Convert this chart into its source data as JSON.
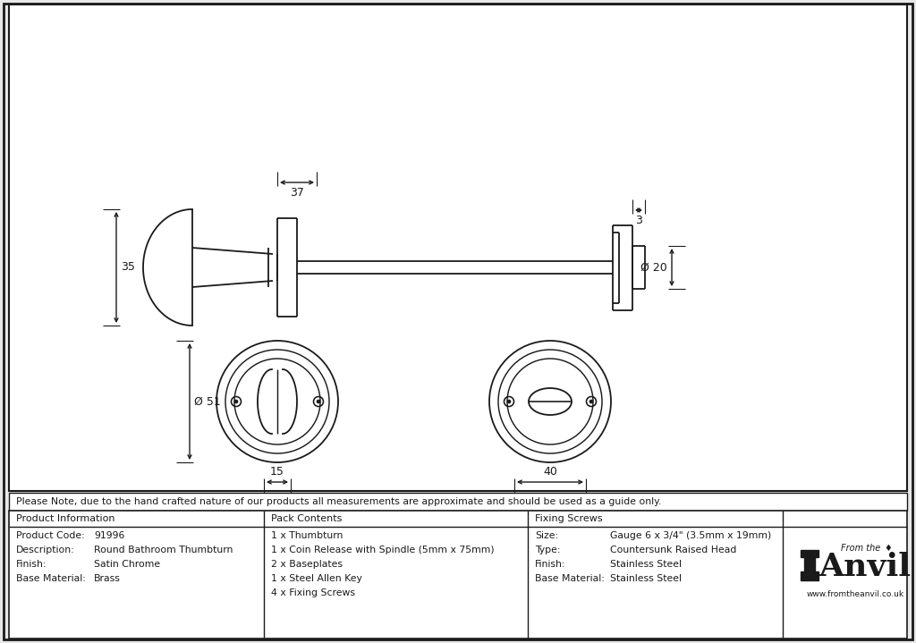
{
  "bg_color": "#e8e8e8",
  "drawing_bg": "#e8e8e8",
  "line_color": "#1a1a1a",
  "note": "Please Note, due to the hand crafted nature of our products all measurements are approximate and should be used as a guide only.",
  "product_info_labels": [
    "Product Code:",
    "Description:",
    "Finish:",
    "Base Material:"
  ],
  "product_info_values": [
    "91996",
    "Round Bathroom Thumbturn",
    "Satin Chrome",
    "Brass"
  ],
  "pack_contents": [
    "1 x Thumbturn",
    "1 x Coin Release with Spindle (5mm x 75mm)",
    "2 x Baseplates",
    "1 x Steel Allen Key",
    "4 x Fixing Screws"
  ],
  "fixing_labels": [
    "Size:",
    "Type:",
    "Finish:",
    "Base Material:"
  ],
  "fixing_values": [
    "Gauge 6 x 3/4\" (3.5mm x 19mm)",
    "Countersunk Raised Head",
    "Stainless Steel",
    "Stainless Steel"
  ],
  "dim_37": "37",
  "dim_3": "3",
  "dim_35": "35",
  "dim_20": "Ø 20",
  "dim_51": "Ø 51",
  "dim_15": "15",
  "dim_40": "40"
}
